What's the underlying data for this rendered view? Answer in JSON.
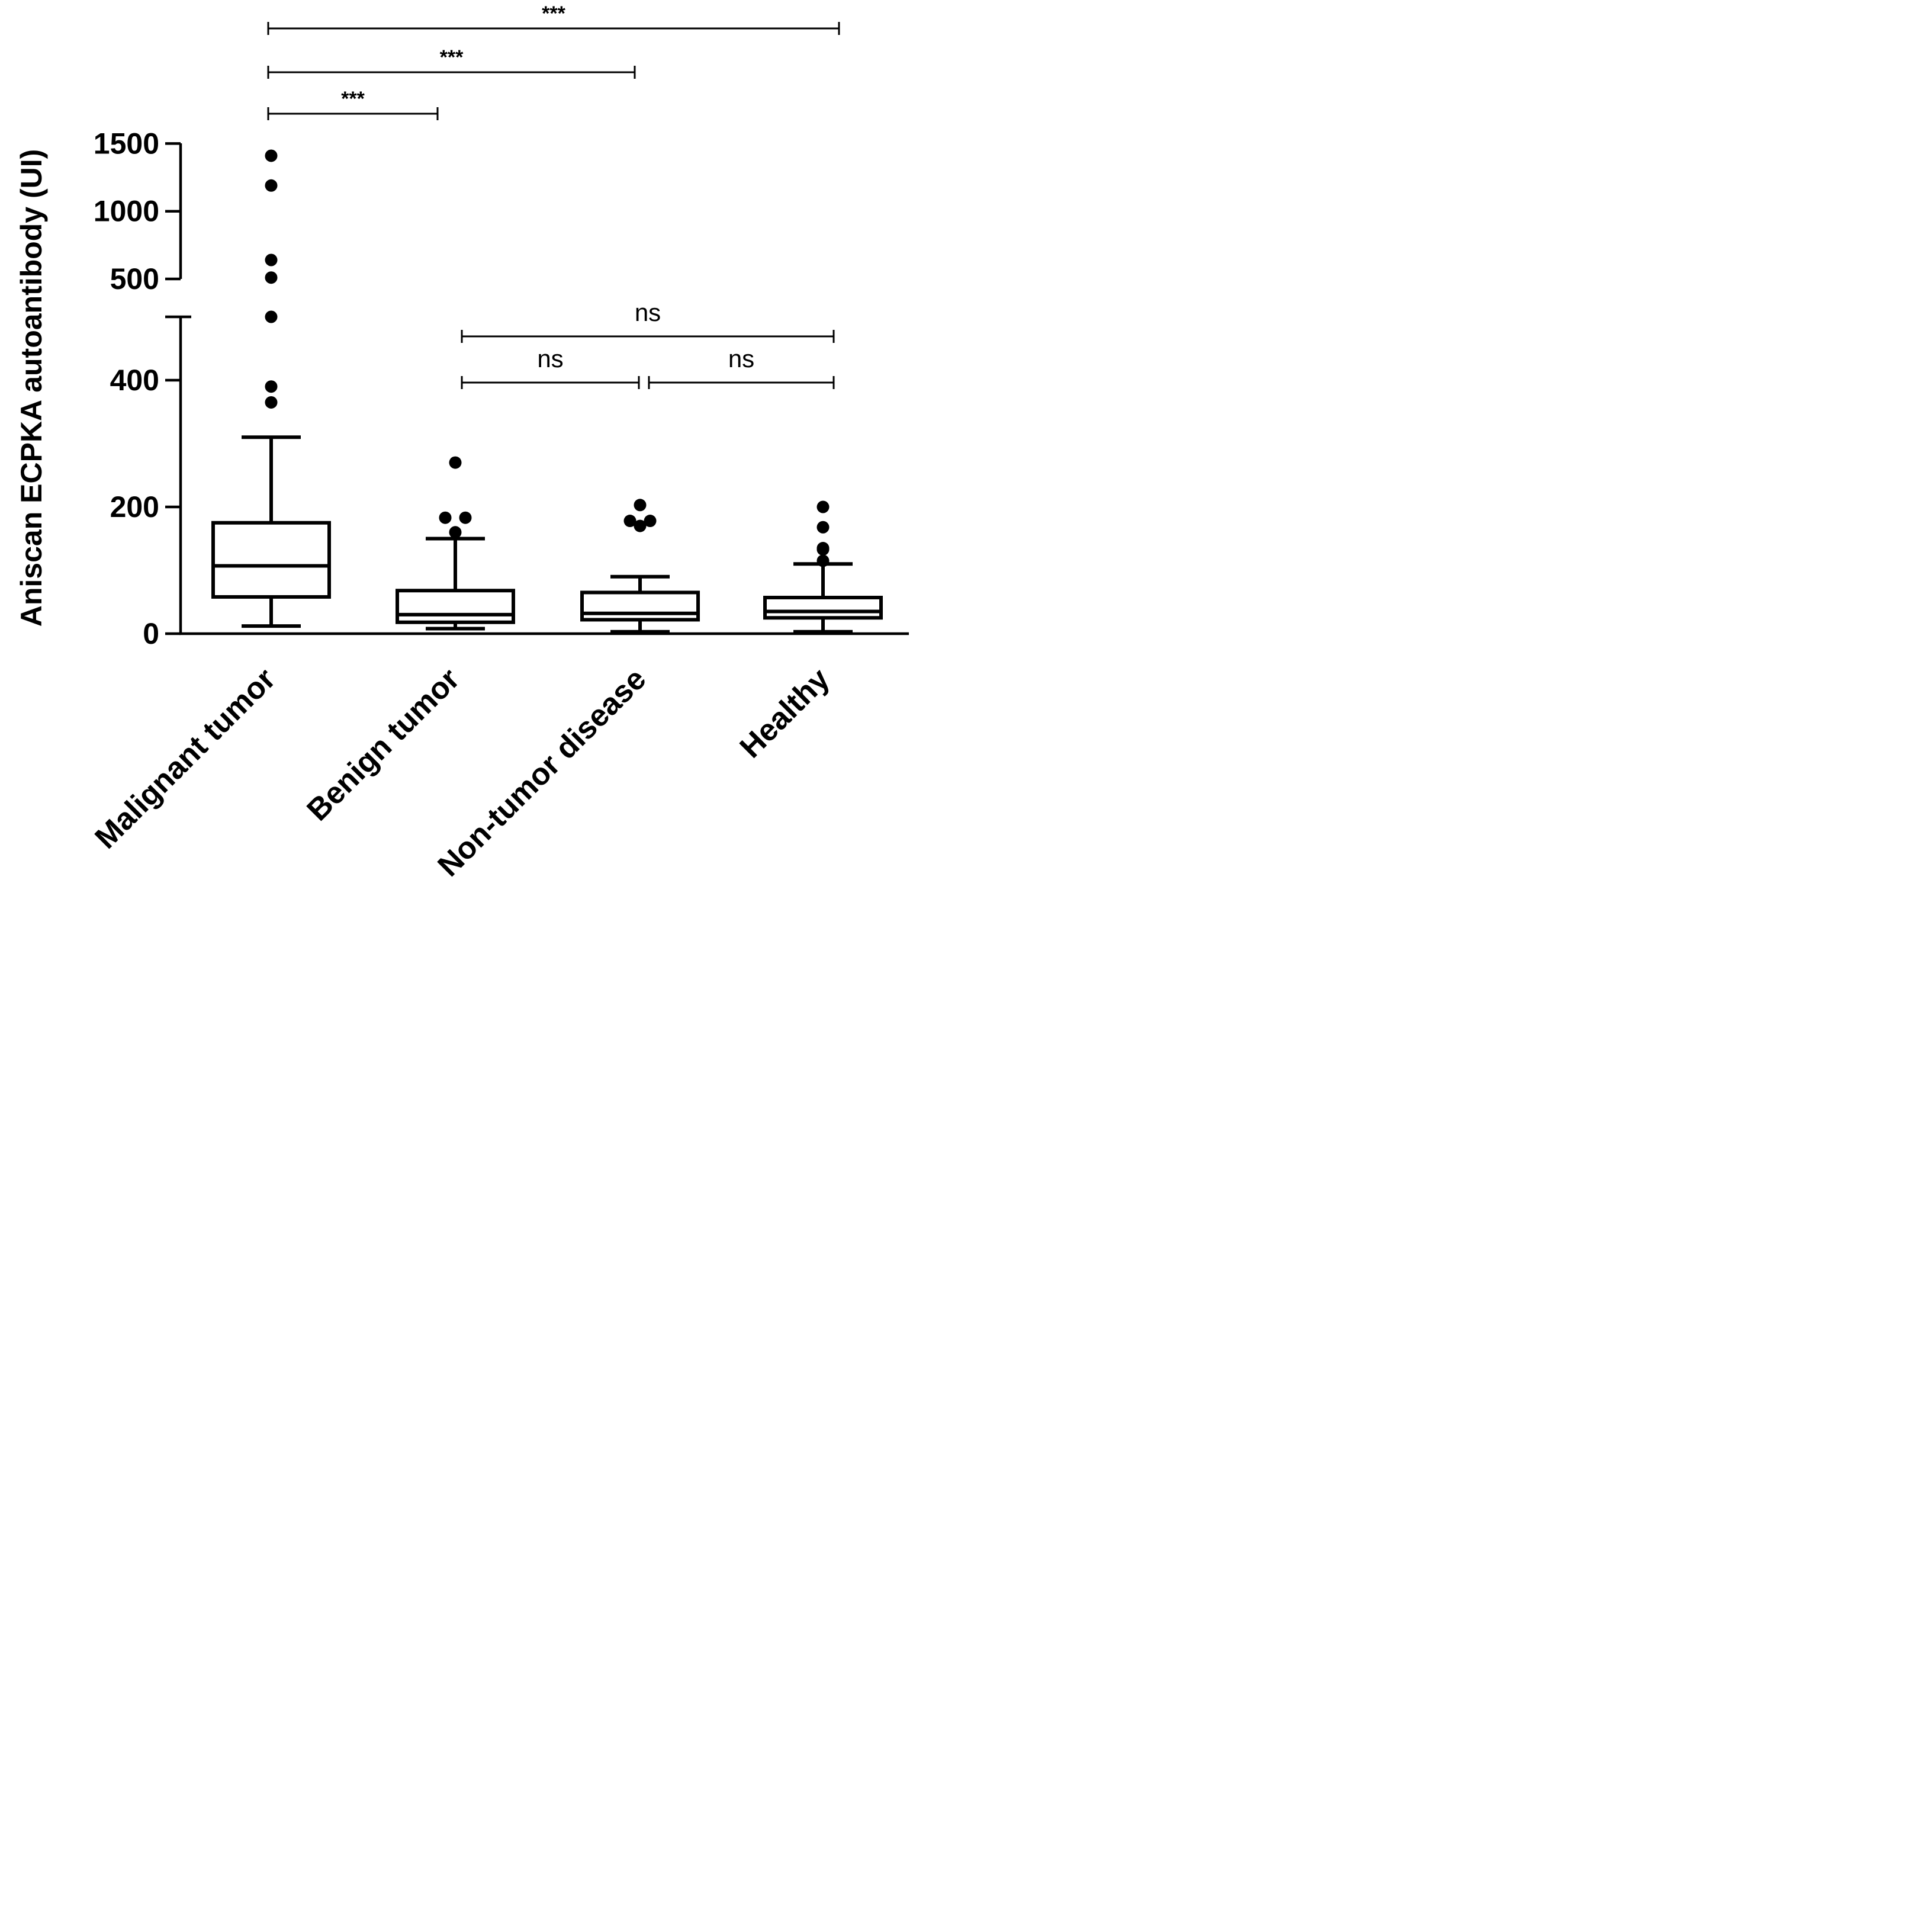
{
  "chart_data": {
    "type": "box",
    "title": "",
    "ylabel": "Aniscan ECPKA autoantibody (UI)",
    "xlabel": "",
    "categories": [
      "Malignant tumor",
      "Benign tumor",
      "Non-tumor disease",
      "Healthy"
    ],
    "y_axis": {
      "broken": true,
      "lower_segment": {
        "range": [
          0,
          520
        ],
        "ticks": [
          0,
          200,
          400
        ]
      },
      "upper_segment": {
        "range": [
          500,
          1500
        ],
        "ticks": [
          500,
          1000,
          1500
        ]
      }
    },
    "tick_labels": [
      "0",
      "200",
      "400",
      "500",
      "1000",
      "1500"
    ],
    "boxes": [
      {
        "name": "Malignant tumor",
        "min": 12,
        "q1": 58,
        "median": 107,
        "q3": 175,
        "max": 310,
        "outliers": [
          365,
          390,
          500,
          510,
          640,
          1190,
          1410
        ]
      },
      {
        "name": "Benign tumor",
        "min": 8,
        "q1": 18,
        "median": 30,
        "q3": 68,
        "max": 150,
        "outliers": [
          160,
          183,
          183,
          270
        ]
      },
      {
        "name": "Non-tumor disease",
        "min": 3,
        "q1": 22,
        "median": 32,
        "q3": 65,
        "max": 90,
        "outliers": [
          170,
          178,
          178,
          203
        ]
      },
      {
        "name": "Healthy",
        "min": 3,
        "q1": 25,
        "median": 35,
        "q3": 57,
        "max": 110,
        "outliers": [
          115,
          133,
          135,
          168,
          200
        ]
      }
    ],
    "comparisons": [
      {
        "from": "Malignant tumor",
        "to": "Healthy",
        "label": "***"
      },
      {
        "from": "Malignant tumor",
        "to": "Non-tumor disease",
        "label": "***"
      },
      {
        "from": "Malignant tumor",
        "to": "Benign tumor",
        "label": "***"
      },
      {
        "from": "Benign tumor",
        "to": "Healthy",
        "label": "ns"
      },
      {
        "from": "Benign tumor",
        "to": "Non-tumor disease",
        "label": "ns"
      },
      {
        "from": "Non-tumor disease",
        "to": "Healthy",
        "label": "ns"
      }
    ]
  }
}
